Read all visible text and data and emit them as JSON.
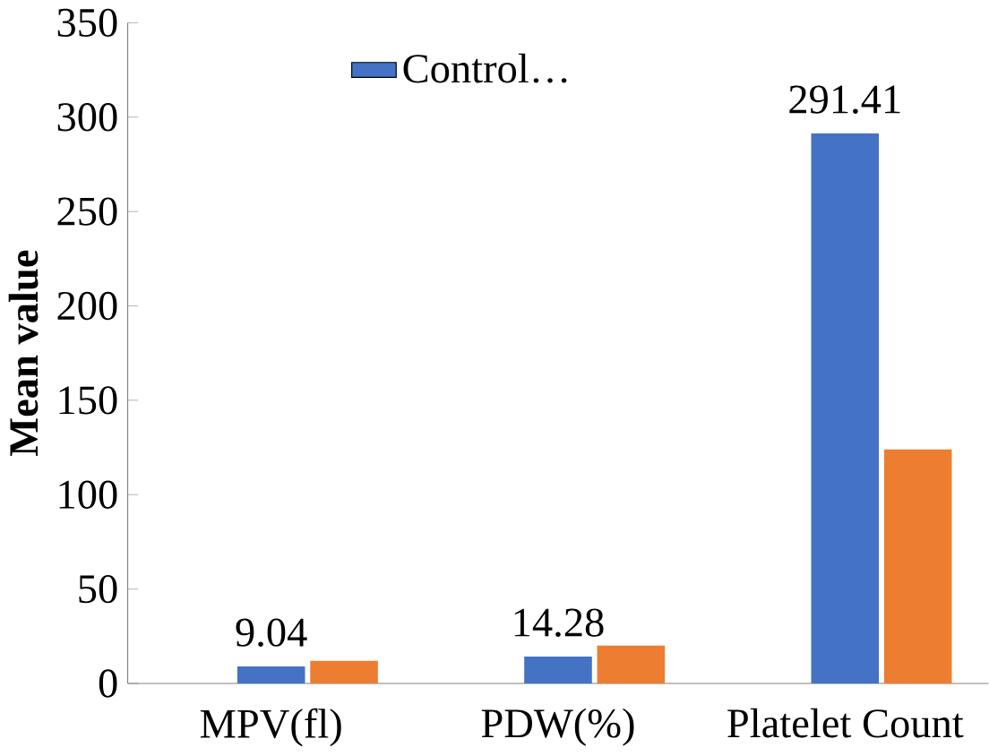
{
  "chart_data": {
    "type": "bar",
    "ylabel": "Mean value",
    "categories": [
      "MPV(fl)",
      "PDW(%)",
      "Platelet Count"
    ],
    "series": [
      {
        "name": "Control…",
        "color": "#4472c4",
        "values": [
          9.04,
          14.28,
          291.41
        ],
        "value_labels": [
          "9.04",
          "14.28",
          "291.41"
        ]
      },
      {
        "color": "#ed7d31",
        "values": [
          12,
          20,
          124
        ]
      }
    ],
    "ylim": [
      0,
      350
    ],
    "yticks": [
      0,
      50,
      100,
      150,
      200,
      250,
      300,
      350
    ],
    "legend": "top left"
  }
}
